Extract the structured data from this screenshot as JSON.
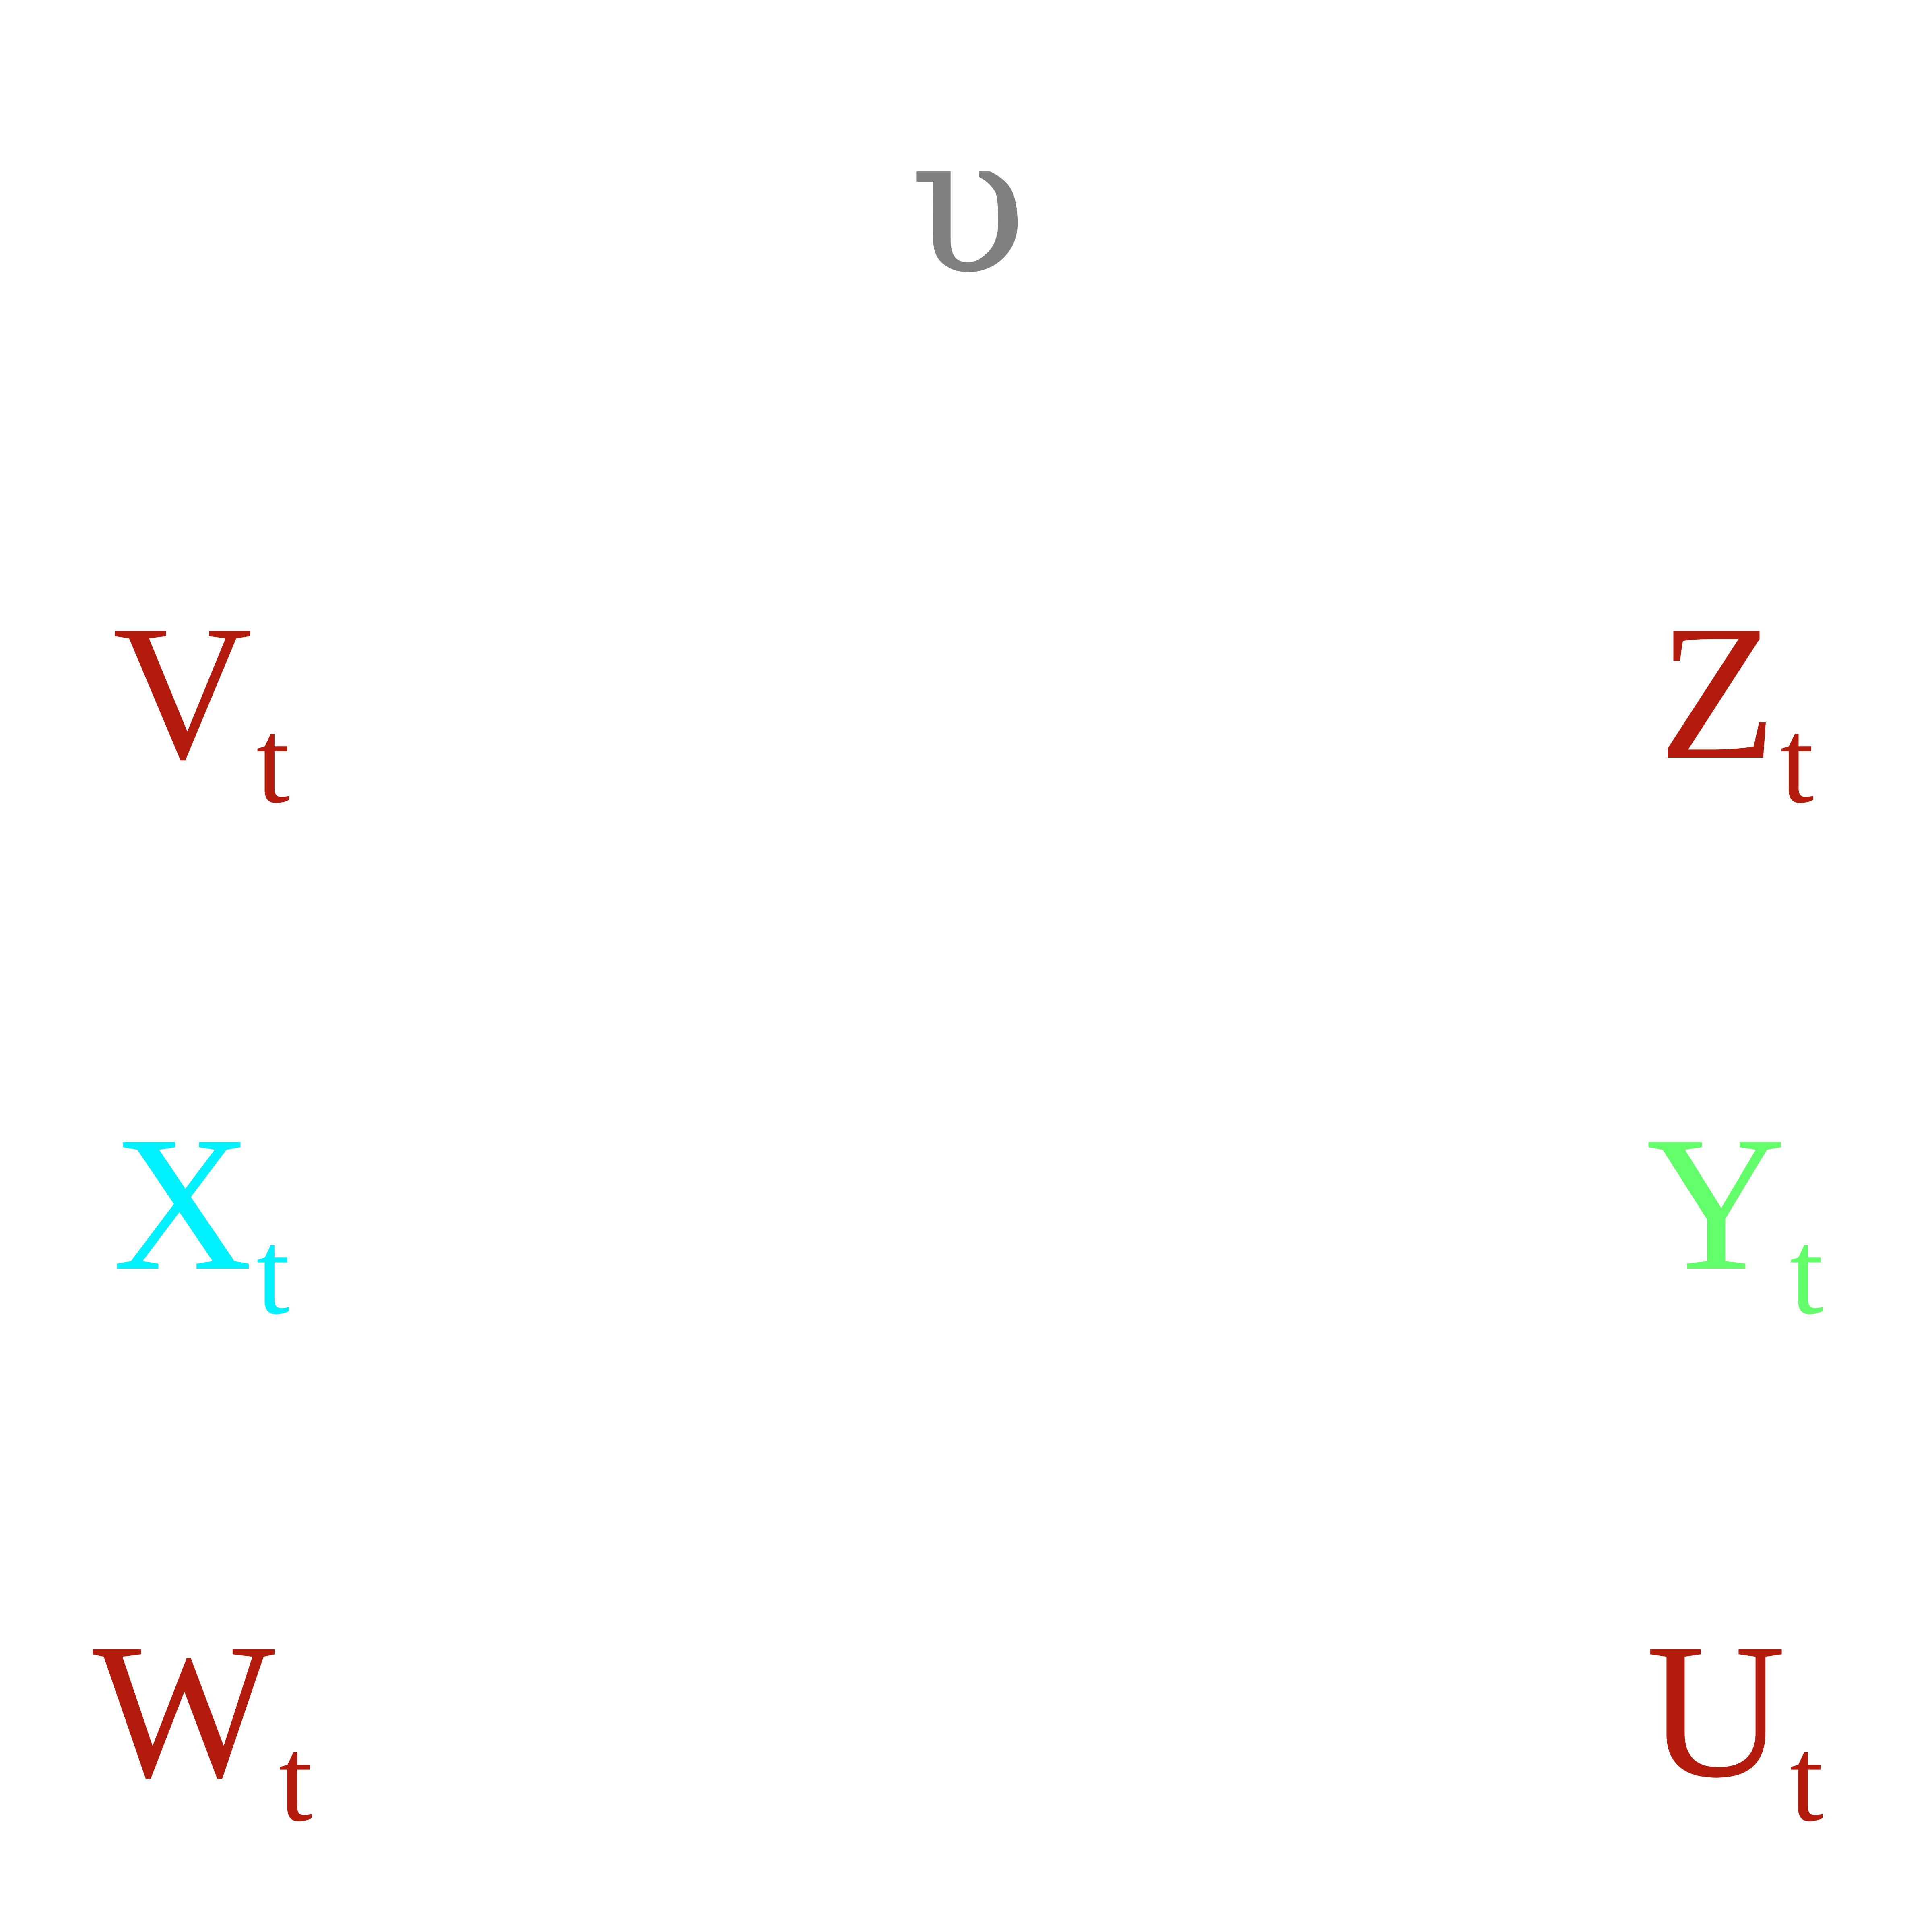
{
  "nodes": {
    "upsilon": {
      "symbol": "υ",
      "color": "#808080"
    },
    "v": {
      "letter": "V",
      "sub": "t",
      "color": "#B31B0C"
    },
    "z": {
      "letter": "Z",
      "sub": "t",
      "color": "#B31B0C"
    },
    "x": {
      "letter": "X",
      "sub": "t",
      "color": "#00F2FF"
    },
    "y": {
      "letter": "Y",
      "sub": "t",
      "color": "#63FF6B"
    },
    "w": {
      "letter": "W",
      "sub": "t",
      "color": "#B31B0C"
    },
    "u": {
      "letter": "U",
      "sub": "t",
      "color": "#B31B0C"
    }
  }
}
